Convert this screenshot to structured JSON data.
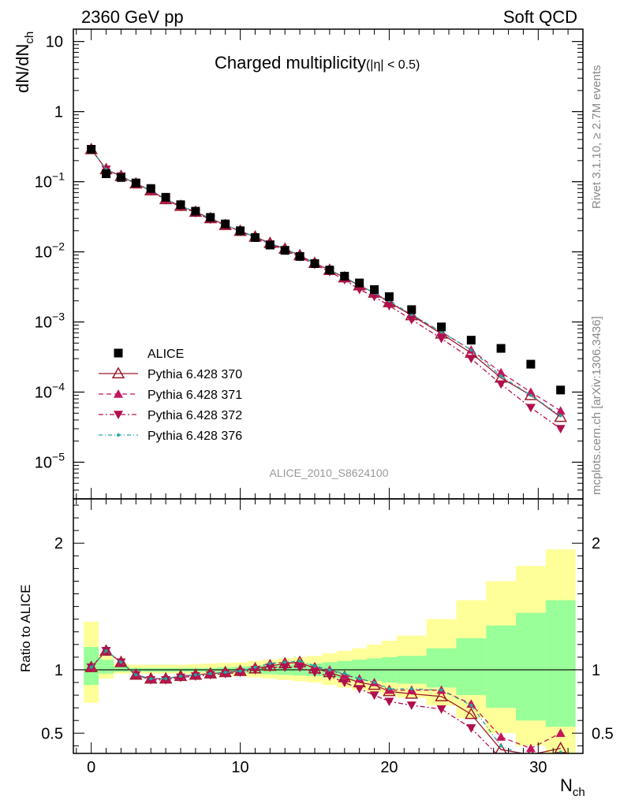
{
  "header": {
    "left": "2360 GeV pp",
    "right": "Soft QCD"
  },
  "title": {
    "main": "Charged multiplicity",
    "suffix": "(|η| < 0.5)"
  },
  "side_labels": {
    "rivet": "Rivet 3.1.10, ≥ 2.7M events",
    "mcplots": "mcplots.cern.ch [arXiv:1306.3436]"
  },
  "analysis_id": "ALICE_2010_S8624100",
  "colors": {
    "ALICE": "#000000",
    "p370": "#9b1b2a",
    "p371": "#c3155a",
    "p372": "#b0104e",
    "p376": "#20a8a0",
    "band_inner": "#99ff99",
    "band_outer": "#ffff99"
  },
  "chart_data": [
    {
      "type": "scatter",
      "panel": "main",
      "y_scale": "log",
      "xlabel": "N_ch",
      "ylabel": "dN/dN_ch",
      "xlim": [
        -1.2,
        33
      ],
      "ylim": [
        3e-06,
        15
      ],
      "y_tick_labels": [
        "10",
        "1",
        "10^-1",
        "10^-2",
        "10^-3",
        "10^-4",
        "10^-5"
      ],
      "legend_position": "left-middle",
      "series": [
        {
          "name": "ALICE",
          "marker": "square",
          "x": [
            0,
            1,
            2,
            3,
            4,
            5,
            6,
            7,
            8,
            9,
            10,
            11,
            12,
            13,
            14,
            15,
            16,
            17,
            18,
            19,
            20,
            21.5,
            23.5,
            25.5,
            27.5,
            29.5,
            31.5
          ],
          "y": [
            0.29,
            0.13,
            0.115,
            0.096,
            0.08,
            0.06,
            0.047,
            0.038,
            0.031,
            0.025,
            0.02,
            0.016,
            0.0125,
            0.0105,
            0.0086,
            0.0068,
            0.0055,
            0.0045,
            0.0036,
            0.0029,
            0.0023,
            0.0015,
            0.00085,
            0.00055,
            0.00042,
            0.00025,
            0.000107
          ]
        },
        {
          "name": "Pythia 6.428 370",
          "marker": "open-triangle-up",
          "line": "solid",
          "x": [
            0,
            1,
            2,
            3,
            4,
            5,
            6,
            7,
            8,
            9,
            10,
            11,
            12,
            13,
            14,
            15,
            16,
            17,
            18,
            19,
            20,
            21.5,
            23.5,
            25.5,
            27.5,
            29.5,
            31.5
          ],
          "y": [
            0.29,
            0.15,
            0.12,
            0.094,
            0.075,
            0.056,
            0.045,
            0.037,
            0.03,
            0.024,
            0.0198,
            0.0164,
            0.0133,
            0.011,
            0.0089,
            0.0069,
            0.0055,
            0.0043,
            0.0033,
            0.0026,
            0.0019,
            0.00124,
            0.00068,
            0.00036,
            0.00016,
            9e-05,
            4.4e-05
          ]
        },
        {
          "name": "Pythia 6.428 371",
          "marker": "triangle-up",
          "line": "dashed",
          "x": [
            0,
            1,
            2,
            3,
            4,
            5,
            6,
            7,
            8,
            9,
            10,
            11,
            12,
            13,
            14,
            15,
            16,
            17,
            18,
            19,
            20,
            21.5,
            23.5,
            25.5,
            27.5,
            29.5,
            31.5
          ],
          "y": [
            0.29,
            0.15,
            0.12,
            0.094,
            0.075,
            0.056,
            0.045,
            0.037,
            0.03,
            0.024,
            0.0198,
            0.0164,
            0.0133,
            0.011,
            0.0089,
            0.0069,
            0.0055,
            0.0043,
            0.0033,
            0.0026,
            0.0019,
            0.00126,
            0.00072,
            0.0004,
            0.00019,
            0.0001,
            5.4e-05
          ]
        },
        {
          "name": "Pythia 6.428 372",
          "marker": "triangle-down",
          "line": "dash-dot",
          "x": [
            0,
            1,
            2,
            3,
            4,
            5,
            6,
            7,
            8,
            9,
            10,
            11,
            12,
            13,
            14,
            15,
            16,
            17,
            18,
            19,
            20,
            21.5,
            23.5,
            25.5,
            27.5,
            29.5,
            31.5
          ],
          "y": [
            0.29,
            0.15,
            0.12,
            0.094,
            0.074,
            0.055,
            0.044,
            0.036,
            0.029,
            0.024,
            0.0196,
            0.0161,
            0.0129,
            0.0106,
            0.0085,
            0.0066,
            0.0052,
            0.004,
            0.0029,
            0.0023,
            0.0017,
            0.00108,
            0.00058,
            0.0003,
            0.00013,
            6e-05,
            3e-05
          ]
        },
        {
          "name": "Pythia 6.428 376",
          "marker": "small-dot",
          "line": "dash-dot-teal",
          "x": [
            0,
            1,
            2,
            3,
            4,
            5,
            6,
            7,
            8,
            9,
            10,
            11,
            12,
            13,
            14,
            15,
            16,
            17,
            18,
            19,
            20,
            21.5,
            23.5,
            25.5,
            27.5,
            29.5,
            31.5
          ],
          "y": [
            0.29,
            0.15,
            0.12,
            0.094,
            0.075,
            0.056,
            0.045,
            0.037,
            0.03,
            0.024,
            0.0198,
            0.0164,
            0.0133,
            0.011,
            0.0089,
            0.0069,
            0.0055,
            0.0044,
            0.0033,
            0.0026,
            0.002,
            0.00128,
            0.00072,
            0.0004,
            0.00017,
            9e-05,
            4.6e-05
          ]
        }
      ]
    },
    {
      "type": "scatter",
      "panel": "ratio",
      "xlabel": "N_ch",
      "ylabel": "Ratio to ALICE",
      "xlim": [
        -1.2,
        33
      ],
      "ylim": [
        0.34,
        2.35
      ],
      "x_ticks": [
        0,
        10,
        20,
        30
      ],
      "y_ticks": [
        0.5,
        1,
        2
      ],
      "reference_line": 1,
      "bands": {
        "x_edges": [
          -0.5,
          0.5,
          1.5,
          2.5,
          3.5,
          4.5,
          5.5,
          6.5,
          7.5,
          8.5,
          9.5,
          10.5,
          11.5,
          12.5,
          13.5,
          14.5,
          15.5,
          16.5,
          17.5,
          18.5,
          19.5,
          20.5,
          22.5,
          24.5,
          26.5,
          28.5,
          30.5,
          32.5
        ],
        "inner_low": [
          0.88,
          0.97,
          0.985,
          0.985,
          0.985,
          0.985,
          0.985,
          0.985,
          0.985,
          0.98,
          0.975,
          0.97,
          0.965,
          0.96,
          0.955,
          0.95,
          0.94,
          0.93,
          0.92,
          0.91,
          0.9,
          0.89,
          0.86,
          0.8,
          0.7,
          0.6,
          0.55
        ],
        "inner_high": [
          1.18,
          1.08,
          1.03,
          1.015,
          1.015,
          1.015,
          1.015,
          1.015,
          1.015,
          1.02,
          1.025,
          1.03,
          1.035,
          1.04,
          1.045,
          1.05,
          1.06,
          1.07,
          1.08,
          1.09,
          1.1,
          1.11,
          1.17,
          1.25,
          1.35,
          1.45,
          1.55
        ],
        "outer_low": [
          0.74,
          0.93,
          0.97,
          0.97,
          0.97,
          0.97,
          0.97,
          0.965,
          0.96,
          0.955,
          0.95,
          0.94,
          0.93,
          0.92,
          0.91,
          0.9,
          0.88,
          0.86,
          0.84,
          0.82,
          0.8,
          0.78,
          0.72,
          0.62,
          0.5,
          0.4,
          0.34
        ],
        "outer_high": [
          1.38,
          1.12,
          1.05,
          1.04,
          1.04,
          1.04,
          1.04,
          1.045,
          1.05,
          1.055,
          1.06,
          1.07,
          1.08,
          1.09,
          1.1,
          1.11,
          1.13,
          1.15,
          1.17,
          1.2,
          1.23,
          1.27,
          1.4,
          1.55,
          1.7,
          1.82,
          1.95
        ]
      },
      "series": [
        {
          "name": "Pythia 6.428 370",
          "marker": "open-triangle-up",
          "line": "solid",
          "x": [
            0,
            1,
            2,
            3,
            4,
            5,
            6,
            7,
            8,
            9,
            10,
            11,
            12,
            13,
            14,
            15,
            16,
            17,
            18,
            19,
            20,
            21.5,
            23.5,
            25.5,
            27.5,
            29.5,
            31.5
          ],
          "y": [
            1.02,
            1.15,
            1.06,
            0.96,
            0.93,
            0.93,
            0.95,
            0.96,
            0.97,
            0.98,
            0.99,
            1.01,
            1.03,
            1.05,
            1.06,
            1.01,
            0.98,
            0.94,
            0.9,
            0.88,
            0.83,
            0.81,
            0.79,
            0.65,
            0.37,
            0.33,
            0.38
          ]
        },
        {
          "name": "Pythia 6.428 371",
          "marker": "triangle-up",
          "line": "dashed",
          "x": [
            0,
            1,
            2,
            3,
            4,
            5,
            6,
            7,
            8,
            9,
            10,
            11,
            12,
            13,
            14,
            15,
            16,
            17,
            18,
            19,
            20,
            21.5,
            23.5,
            25.5,
            27.5,
            29.5,
            31.5
          ],
          "y": [
            1.02,
            1.15,
            1.06,
            0.96,
            0.93,
            0.93,
            0.95,
            0.96,
            0.97,
            0.98,
            0.99,
            1.02,
            1.05,
            1.06,
            1.05,
            1.02,
            1.0,
            0.96,
            0.93,
            0.9,
            0.84,
            0.84,
            0.84,
            0.73,
            0.47,
            0.38,
            0.5
          ]
        },
        {
          "name": "Pythia 6.428 372",
          "marker": "triangle-down",
          "line": "dash-dot",
          "x": [
            0,
            1,
            2,
            3,
            4,
            5,
            6,
            7,
            8,
            9,
            10,
            11,
            12,
            13,
            14,
            15,
            16,
            17,
            18,
            19,
            20,
            21.5,
            23.5,
            25.5,
            27.5,
            29.5,
            31.5
          ],
          "y": [
            1.02,
            1.15,
            1.06,
            0.96,
            0.92,
            0.92,
            0.94,
            0.95,
            0.96,
            0.97,
            0.98,
            1.0,
            1.02,
            1.02,
            1.02,
            0.98,
            0.95,
            0.9,
            0.85,
            0.8,
            0.75,
            0.72,
            0.69,
            0.54,
            0.3,
            0.24,
            0.28
          ]
        },
        {
          "name": "Pythia 6.428 376",
          "marker": "small-dot",
          "line": "dash-dot-teal",
          "x": [
            0,
            1,
            2,
            3,
            4,
            5,
            6,
            7,
            8,
            9,
            10,
            11,
            12,
            13,
            14,
            15,
            16,
            17,
            18,
            19,
            20,
            21.5,
            23.5,
            25.5,
            27.5,
            29.5,
            31.5
          ],
          "y": [
            1.02,
            1.15,
            1.06,
            0.96,
            0.93,
            0.93,
            0.95,
            0.96,
            0.97,
            0.98,
            0.99,
            1.02,
            1.05,
            1.06,
            1.07,
            1.03,
            1.0,
            0.97,
            0.93,
            0.9,
            0.85,
            0.85,
            0.84,
            0.72,
            0.4,
            0.3,
            0.35
          ]
        }
      ]
    }
  ]
}
